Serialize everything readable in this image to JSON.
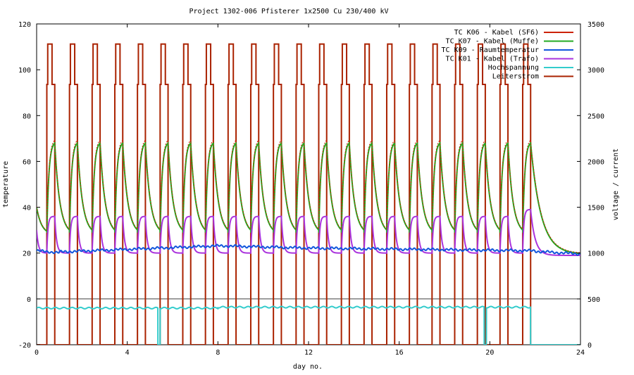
{
  "chart_data": {
    "type": "line",
    "title": "Project 1302-006  Pfisterer   1x2500 Cu 230/400 kV",
    "xlabel": "day no.",
    "ylabel": "temperature",
    "y2label": "voltage / current",
    "xlim": [
      0,
      24
    ],
    "ylim": [
      -20,
      120
    ],
    "y2lim": [
      0,
      3500
    ],
    "x_ticks": [
      "0",
      "4",
      "8",
      "12",
      "16",
      "20",
      "24"
    ],
    "y_ticks": [
      "-20",
      "0",
      "20",
      "40",
      "60",
      "80",
      "100",
      "120"
    ],
    "y2_ticks": [
      "0",
      "500",
      "1000",
      "1500",
      "2000",
      "2500",
      "3000",
      "3500"
    ],
    "grid": false,
    "zero_line": true,
    "legend_position": "top-right",
    "cycles": {
      "count": 22,
      "period_days": 1,
      "heat_on_offset_days": 0.45,
      "heat_duration_days": 0.35
    },
    "series": [
      {
        "name": "TC K06 - Kabel (SF6)",
        "axis": "y",
        "color": "#cc2200",
        "base": 28,
        "peak": 69,
        "final": 19.5
      },
      {
        "name": "TC K07 - Kabel (Muffe)",
        "axis": "y",
        "color": "#22aa22",
        "base": 28,
        "peak": 68,
        "final": 19.5
      },
      {
        "name": "TC K09 - Raumtemperatur",
        "axis": "y",
        "color": "#1155dd",
        "start": 21,
        "range": [
          20,
          24
        ],
        "final": 19.5
      },
      {
        "name": "TC K01 - Kabel (Trafo)",
        "axis": "y",
        "color": "#aa33dd",
        "base": 20,
        "peak": 36,
        "last_peak": 39,
        "final": 19
      },
      {
        "name": "Hochspannung",
        "axis": "y2",
        "color": "#33cccc",
        "level": 400,
        "dropouts_day": [
          5.4,
          19.8
        ],
        "off_after_day": 21.8
      },
      {
        "name": "Leiterstrom",
        "axis": "y2",
        "color": "#aa2200",
        "on_level": 3280,
        "ramp_level": 2840,
        "off_level": 0
      }
    ]
  }
}
